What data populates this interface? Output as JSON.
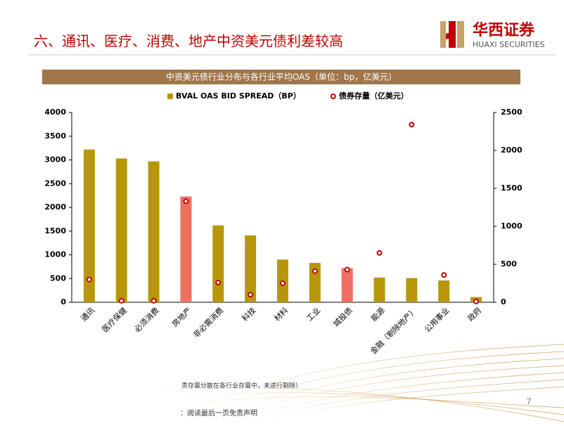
{
  "header": {
    "title": "六、通讯、医疗、消费、地产中资美元债利差较高",
    "logo_cn": "华西证券",
    "logo_en": "HUAXI SECURITIES"
  },
  "chart_data": {
    "type": "bar-dot",
    "title": "中资美元债行业分布与各行业平均OAS（单位：bp，亿美元）",
    "categories": [
      "通讯",
      "医疗保健",
      "必须消费",
      "房地产",
      "非必需消费",
      "科技",
      "材料",
      "工业",
      "城投债",
      "能源",
      "金融（剔除地产）",
      "公用事业",
      "政府"
    ],
    "series": [
      {
        "name": "BVAL OAS BID SPREAD（BP）",
        "color": "#b8960c",
        "colors": [
          "#b8960c",
          "#b8960c",
          "#b8960c",
          "#ee7060",
          "#b8960c",
          "#b8960c",
          "#b8960c",
          "#b8960c",
          "#ee7060",
          "#b8960c",
          "#b8960c",
          "#b8960c",
          "#b8960c"
        ],
        "values": [
          3220,
          3030,
          2970,
          2230,
          1620,
          1410,
          900,
          830,
          720,
          520,
          510,
          460,
          110
        ]
      },
      {
        "name": "债券存量（亿美元）",
        "color": "#c00000",
        "axis": "y2",
        "values": [
          300,
          20,
          20,
          1330,
          260,
          100,
          250,
          410,
          430,
          650,
          2340,
          360,
          10
        ]
      }
    ],
    "ylim": [
      0,
      4000
    ],
    "yticks": [
      0,
      500,
      1000,
      1500,
      2000,
      2500,
      3000,
      3500,
      4000
    ],
    "y2lim": [
      0,
      2500
    ],
    "y2ticks": [
      0,
      500,
      1000,
      1500,
      2000,
      2500
    ]
  },
  "footer": {
    "note": "责存量分散在各行业存量中，未进行剔除）",
    "disclaimer": "：阅读最后一页免责声明",
    "page": "7"
  }
}
